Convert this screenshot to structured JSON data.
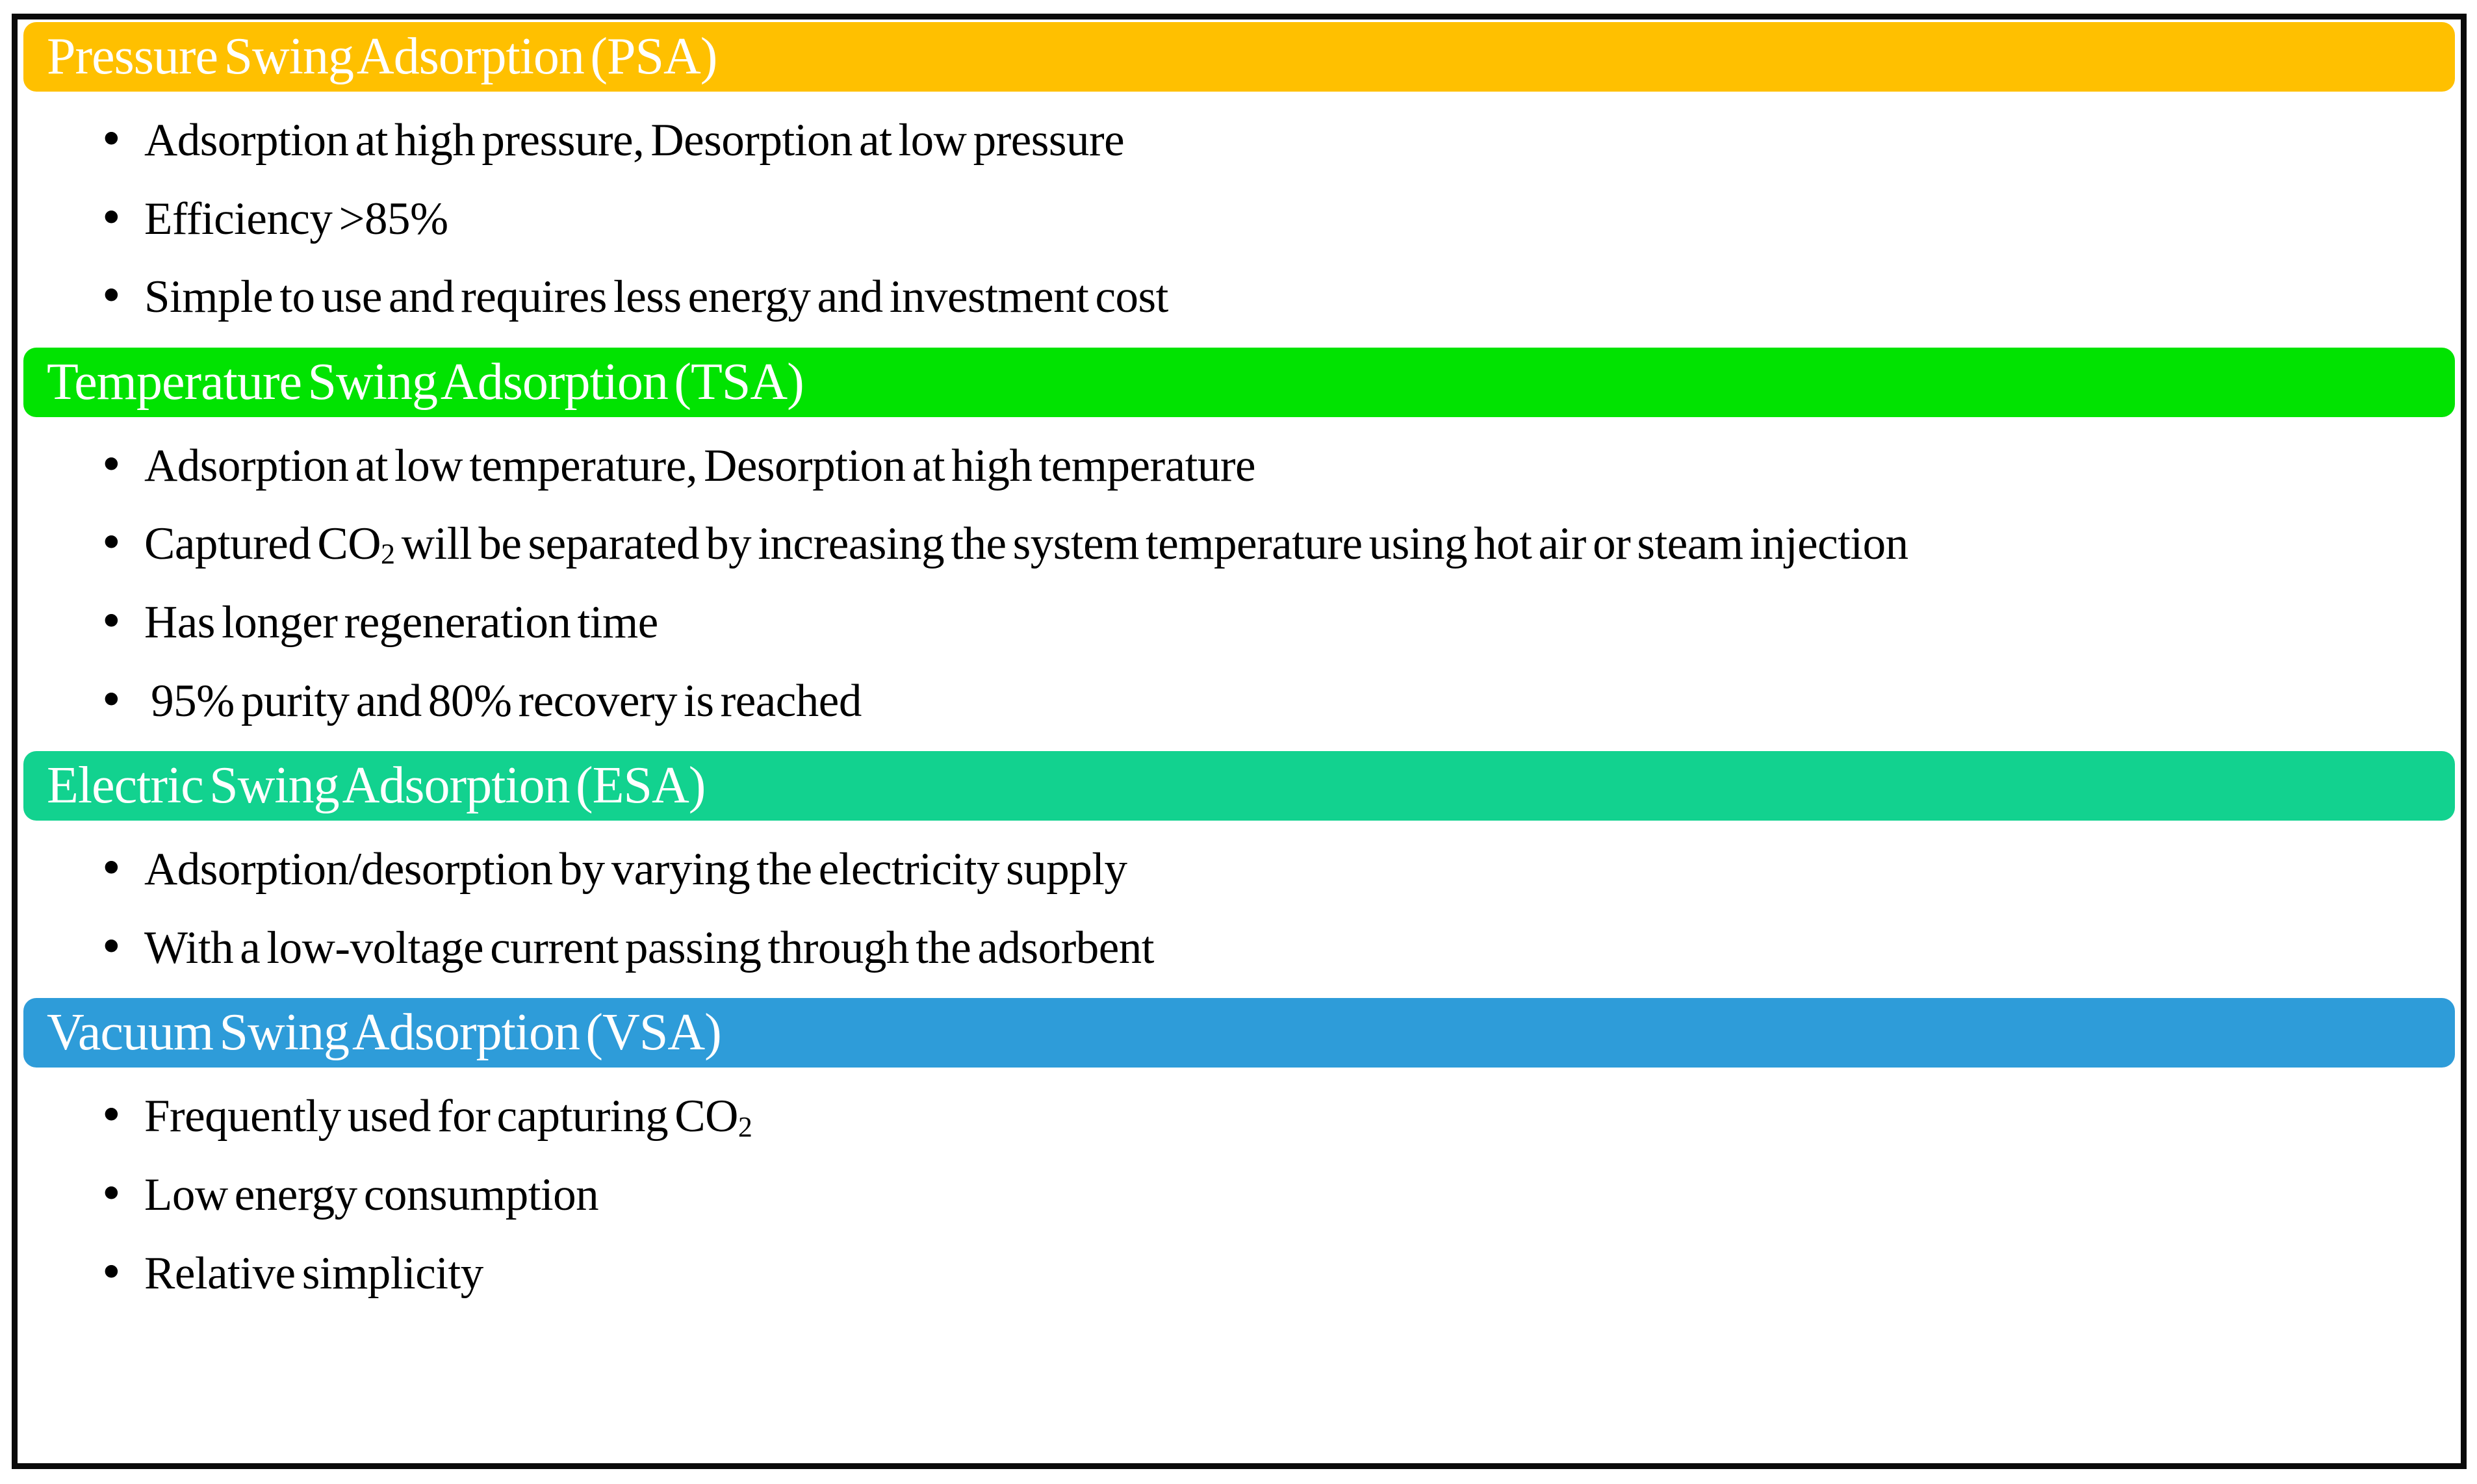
{
  "figure": {
    "background": "#FFFFFF",
    "frame_border_color": "#0A0A0A",
    "header_text_color": "#FFFFFF",
    "body_text_color": "#000000"
  },
  "glyphs": {
    "bullet": "•"
  },
  "sections": [
    {
      "key": "psa",
      "title": "Pressure Swing Adsorption (PSA)",
      "header_color": "#FFC000",
      "bullets": [
        {
          "segments": [
            {
              "text": "Adsorption at high pressure, Desorption at low pressure"
            }
          ]
        },
        {
          "segments": [
            {
              "text": "Efficiency >85%"
            }
          ]
        },
        {
          "segments": [
            {
              "text": "Simple to use and requires less energy and investment cost"
            }
          ]
        }
      ]
    },
    {
      "key": "tsa",
      "title": "Temperature Swing Adsorption (TSA)",
      "header_color": "#01E301",
      "bullets": [
        {
          "segments": [
            {
              "text": "Adsorption at low temperature, Desorption at high temperature"
            }
          ]
        },
        {
          "segments": [
            {
              "text": "Captured CO"
            },
            {
              "text": "2",
              "sub": true
            },
            {
              "text": " will be separated by increasing the system temperature using hot air or steam injection"
            }
          ]
        },
        {
          "segments": [
            {
              "text": "Has longer regeneration time"
            }
          ]
        },
        {
          "segments": [
            {
              "text": " 95% purity and 80% recovery is reached"
            }
          ]
        }
      ]
    },
    {
      "key": "esa",
      "title": "Electric Swing Adsorption (ESA)",
      "header_color": "#12D28F",
      "bullets": [
        {
          "segments": [
            {
              "text": "Adsorption/desorption by varying the electricity supply"
            }
          ]
        },
        {
          "segments": [
            {
              "text": "With a low-voltage current passing through the adsorbent"
            }
          ]
        }
      ]
    },
    {
      "key": "vsa",
      "title": "Vacuum Swing Adsorption (VSA)",
      "header_color": "#2E9CD9",
      "bullets": [
        {
          "segments": [
            {
              "text": "Frequently used for capturing CO"
            },
            {
              "text": "2",
              "sub": true
            }
          ]
        },
        {
          "segments": [
            {
              "text": "Low energy consumption"
            }
          ]
        },
        {
          "segments": [
            {
              "text": "Relative simplicity"
            }
          ]
        }
      ]
    }
  ]
}
